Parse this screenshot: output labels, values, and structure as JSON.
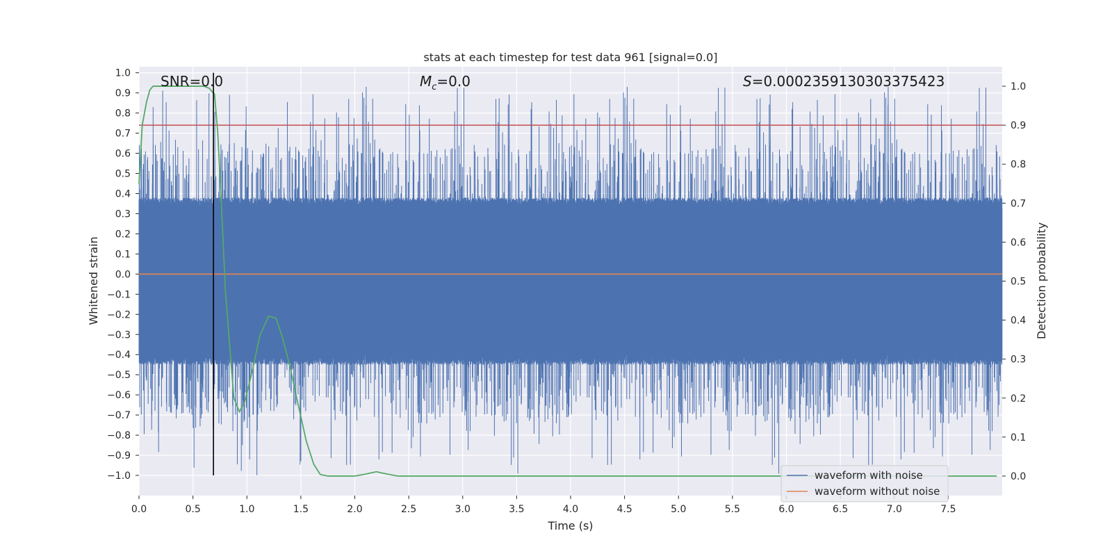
{
  "chart_data": {
    "type": "line",
    "title": "stats at each timestep for test data 961 [signal=0.0]",
    "xlabel": "Time (s)",
    "ylabel_left": "Whitened strain",
    "ylabel_right": "Detection probability",
    "xlim": [
      0.0,
      8.0
    ],
    "ylim_left": [
      -1.1,
      1.03
    ],
    "ylim_right": [
      -0.05,
      1.05
    ],
    "x_ticks": [
      0.0,
      0.5,
      1.0,
      1.5,
      2.0,
      2.5,
      3.0,
      3.5,
      4.0,
      4.5,
      5.0,
      5.5,
      6.0,
      6.5,
      7.0,
      7.5
    ],
    "x_tick_labels": [
      "0.0",
      "0.5",
      "1.0",
      "1.5",
      "2.0",
      "2.5",
      "3.0",
      "3.5",
      "4.0",
      "4.5",
      "5.0",
      "5.5",
      "6.0",
      "6.5",
      "7.0",
      "7.5"
    ],
    "y_left_ticks": [
      -1.0,
      -0.9,
      -0.8,
      -0.7,
      -0.6,
      -0.5,
      -0.4,
      -0.3,
      -0.2,
      -0.1,
      0.0,
      0.1,
      0.2,
      0.3,
      0.4,
      0.5,
      0.6,
      0.7,
      0.8,
      0.9,
      1.0
    ],
    "y_left_tick_labels": [
      "−1.0",
      "−0.9",
      "−0.8",
      "−0.7",
      "−0.6",
      "−0.5",
      "−0.4",
      "−0.3",
      "−0.2",
      "−0.1",
      "0.0",
      "0.1",
      "0.2",
      "0.3",
      "0.4",
      "0.5",
      "0.6",
      "0.7",
      "0.8",
      "0.9",
      "1.0"
    ],
    "y_right_ticks": [
      0.0,
      0.1,
      0.2,
      0.3,
      0.4,
      0.5,
      0.6,
      0.7,
      0.8,
      0.9,
      1.0
    ],
    "y_right_tick_labels": [
      "0.0",
      "0.1",
      "0.2",
      "0.3",
      "0.4",
      "0.5",
      "0.6",
      "0.7",
      "0.8",
      "0.9",
      "1.0"
    ],
    "annotations": {
      "snr": "SNR=0.0",
      "mc": "M",
      "mc_sub": "c",
      "mc_value": "=0.0",
      "s_symbol": "S",
      "s_value": "=0.0002359130303375423"
    },
    "series": [
      {
        "name": "waveform with noise",
        "axis": "left",
        "color": "#4c72b0",
        "noise_model": {
          "samples": 8192,
          "band_low": -0.42,
          "band_high": 0.35,
          "peak_max": 0.93,
          "trough_min": -1.0,
          "seed": 961
        }
      },
      {
        "name": "waveform without noise",
        "axis": "left",
        "color": "#dd8452",
        "x": [
          0.0,
          8.0
        ],
        "y": [
          0.0,
          0.0
        ]
      },
      {
        "name": "detection probability",
        "axis": "right",
        "color": "#55a868",
        "x": [
          0.0,
          0.03,
          0.07,
          0.1,
          0.13,
          0.2,
          0.3,
          0.4,
          0.5,
          0.6,
          0.65,
          0.68,
          0.7,
          0.73,
          0.76,
          0.8,
          0.85,
          0.88,
          0.93,
          0.98,
          1.05,
          1.12,
          1.2,
          1.27,
          1.33,
          1.4,
          1.47,
          1.55,
          1.62,
          1.68,
          1.75,
          1.85,
          2.0,
          2.1,
          2.2,
          2.3,
          2.4,
          3.0,
          4.0,
          5.0,
          6.0,
          7.0,
          7.95
        ],
        "y": [
          0.75,
          0.9,
          0.96,
          0.99,
          1.0,
          1.0,
          1.0,
          1.0,
          1.0,
          1.0,
          0.995,
          0.985,
          0.98,
          0.88,
          0.72,
          0.48,
          0.3,
          0.2,
          0.165,
          0.19,
          0.27,
          0.36,
          0.41,
          0.405,
          0.355,
          0.28,
          0.19,
          0.09,
          0.03,
          0.004,
          0.0,
          0.0,
          0.0,
          0.005,
          0.011,
          0.005,
          0.0,
          0.0,
          0.0,
          0.0,
          0.0,
          0.0,
          0.0
        ]
      }
    ],
    "threshold": {
      "axis": "right",
      "value": 0.9,
      "color": "#c44e52"
    },
    "vertical_marker": {
      "x": 0.69,
      "y_range": [
        -1.0,
        1.0
      ],
      "color": "#000000"
    },
    "legend": {
      "placement": "lower-right",
      "entries": [
        "waveform with noise",
        "waveform without noise"
      ]
    },
    "grid": true,
    "background": "#eaeaf2"
  }
}
